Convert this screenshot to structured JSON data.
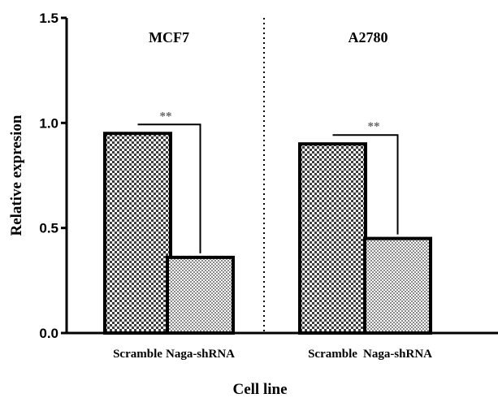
{
  "chart_data": {
    "type": "bar",
    "xlabel": "Cell line",
    "ylabel": "Relative expresion",
    "ylim": [
      0,
      1.5
    ],
    "yticks": [
      "0.0",
      "0.5",
      "1.0",
      "1.5"
    ],
    "grid": false,
    "groups": [
      {
        "name": "MCF7",
        "categories": [
          "Scramble",
          "Naga-shRNA"
        ],
        "values": [
          0.95,
          0.36
        ],
        "significance": "**"
      },
      {
        "name": "A2780",
        "categories": [
          "Scramble",
          "Naga-shRNA"
        ],
        "values": [
          0.9,
          0.45
        ],
        "significance": "**"
      }
    ],
    "fill_patterns": {
      "Scramble": "dense-checker",
      "Naga-shRNA": "fine-checker"
    },
    "colors": {
      "bar_stroke": "#000000",
      "pattern_dark": "#3c3c3c",
      "pattern_light": "#ffffff"
    }
  }
}
